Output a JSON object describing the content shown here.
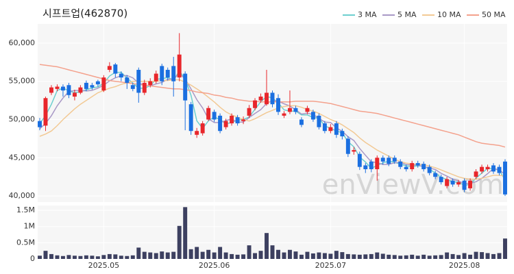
{
  "chart_data": {
    "type": "candlestick",
    "title": "시프트업(462870)",
    "watermark": "enViewV.com",
    "categories": [
      null,
      null,
      null,
      null,
      null,
      null,
      null,
      null,
      null,
      null,
      null,
      "2025.05",
      null,
      null,
      null,
      null,
      null,
      null,
      null,
      null,
      null,
      null,
      null,
      null,
      null,
      null,
      null,
      null,
      null,
      null,
      "2025.06",
      null,
      null,
      null,
      null,
      null,
      null,
      null,
      null,
      null,
      null,
      null,
      null,
      null,
      null,
      null,
      null,
      null,
      null,
      null,
      "2025.07",
      null,
      null,
      null,
      null,
      null,
      null,
      null,
      null,
      null,
      null,
      null,
      null,
      null,
      null,
      null,
      null,
      null,
      null,
      null,
      null,
      null,
      null,
      "2025.08",
      null,
      null,
      null,
      null,
      null,
      null,
      null
    ],
    "open": [
      49800,
      49200,
      53500,
      54000,
      54300,
      54500,
      53000,
      53500,
      54800,
      54500,
      55000,
      53800,
      56500,
      57200,
      56000,
      55500,
      54500,
      56500,
      53500,
      54500,
      55000,
      57000,
      56500,
      57000,
      55500,
      56000,
      52000,
      48000,
      48200,
      50000,
      51000,
      50500,
      49000,
      49500,
      50300,
      49800,
      50500,
      51500,
      52500,
      52000,
      53500,
      52800,
      50500,
      51000,
      51500,
      50000,
      51000,
      51000,
      50500,
      49500,
      48500,
      49500,
      48500,
      47500,
      45800,
      45500,
      44000,
      44500,
      43500,
      45000,
      45000,
      45000,
      44500,
      43800,
      43500,
      44300,
      44200,
      43800,
      43000,
      42500,
      41300,
      42000,
      41500,
      42000,
      41000,
      42500,
      43200,
      43500,
      44000,
      43800,
      44500
    ],
    "high": [
      50200,
      53000,
      54500,
      54600,
      54600,
      54800,
      53900,
      54500,
      55100,
      54800,
      55200,
      55800,
      57500,
      57400,
      56300,
      55800,
      54800,
      56800,
      55200,
      55400,
      56400,
      57300,
      56800,
      58200,
      61300,
      56300,
      52300,
      48900,
      49800,
      51800,
      51300,
      50800,
      50100,
      50800,
      50600,
      50400,
      51900,
      52800,
      53400,
      56500,
      53800,
      53300,
      51100,
      53800,
      51800,
      50300,
      51800,
      51300,
      50800,
      49800,
      49400,
      49800,
      48800,
      47800,
      46400,
      45800,
      44300,
      44800,
      45300,
      45300,
      45300,
      45300,
      44800,
      44100,
      44600,
      44600,
      44500,
      44100,
      43300,
      42800,
      42500,
      42300,
      42100,
      42300,
      42300,
      43500,
      44100,
      44100,
      44300,
      44100,
      44800
    ],
    "low": [
      48600,
      48500,
      53200,
      53700,
      53000,
      52800,
      52500,
      53300,
      53700,
      53900,
      54300,
      53600,
      56200,
      55500,
      55000,
      54000,
      53700,
      52200,
      53200,
      54200,
      54700,
      54500,
      55100,
      53000,
      55000,
      48600,
      48000,
      47600,
      47900,
      49800,
      49700,
      48200,
      48700,
      49200,
      49200,
      49400,
      50200,
      51200,
      52200,
      51800,
      51600,
      50600,
      50200,
      50700,
      50700,
      49000,
      50700,
      49700,
      48700,
      48200,
      48200,
      47600,
      47400,
      45100,
      45400,
      43400,
      43000,
      43100,
      42000,
      44100,
      43900,
      44200,
      43500,
      43200,
      43200,
      43700,
      43200,
      42700,
      42200,
      41500,
      41000,
      41200,
      41200,
      40500,
      40700,
      42200,
      42900,
      43200,
      42900,
      42700,
      40000
    ],
    "close": [
      49000,
      52800,
      54200,
      54300,
      53800,
      53200,
      53500,
      54200,
      54000,
      54200,
      54600,
      55500,
      57000,
      56000,
      55500,
      54800,
      54000,
      53500,
      54800,
      55000,
      56000,
      55000,
      55500,
      55000,
      58500,
      52500,
      48500,
      48500,
      49500,
      51500,
      50000,
      48500,
      49800,
      50500,
      49500,
      50000,
      51500,
      52500,
      53000,
      53500,
      52000,
      51000,
      50800,
      51500,
      51000,
      49300,
      51500,
      50000,
      49000,
      48500,
      49000,
      48000,
      47800,
      45500,
      46000,
      43800,
      43500,
      43500,
      45000,
      44500,
      44200,
      44500,
      43800,
      43500,
      44300,
      44000,
      43500,
      43000,
      42500,
      41800,
      42200,
      41500,
      41800,
      40800,
      42000,
      43200,
      43800,
      43800,
      43200,
      43000,
      40200
    ],
    "up_color": "#e8262b",
    "down_color": "#1b6fe0",
    "ylim": [
      39200,
      62500
    ],
    "yticks": [
      {
        "value": 40000,
        "label": "40,000"
      },
      {
        "value": 45000,
        "label": "45,000"
      },
      {
        "value": 50000,
        "label": "50,000"
      },
      {
        "value": 55000,
        "label": "55,000"
      },
      {
        "value": 60000,
        "label": "60,000"
      }
    ],
    "grid": true,
    "legend": "top-right",
    "series": [
      {
        "name": "3 MA",
        "color": "#6ccfcf",
        "values": [
          49500,
          50500,
          52000,
          53800,
          54100,
          53770,
          53500,
          53630,
          53900,
          54130,
          54270,
          54770,
          55700,
          56170,
          56170,
          55430,
          54770,
          54100,
          54100,
          54430,
          55270,
          55330,
          55500,
          55170,
          56330,
          55330,
          53170,
          49830,
          48830,
          49830,
          50330,
          50000,
          49430,
          49600,
          49930,
          50000,
          50330,
          51330,
          52330,
          53000,
          52830,
          52170,
          51270,
          51100,
          51100,
          50600,
          50600,
          50270,
          50170,
          49170,
          48830,
          48500,
          48270,
          47100,
          46430,
          45100,
          44430,
          43600,
          44000,
          44330,
          44570,
          44400,
          44170,
          43930,
          43870,
          43930,
          43930,
          43500,
          43000,
          42430,
          42170,
          41830,
          41830,
          41370,
          41530,
          42330,
          43000,
          43600,
          43600,
          43330,
          42130
        ]
      },
      {
        "name": "5 MA",
        "color": "#a898c6",
        "values": [
          48800,
          49500,
          50500,
          51800,
          52820,
          53660,
          53800,
          53800,
          53740,
          53820,
          54100,
          54500,
          55060,
          55460,
          55720,
          55760,
          55460,
          54760,
          54520,
          54420,
          54660,
          54860,
          55260,
          55300,
          56000,
          55300,
          54000,
          52600,
          51500,
          50100,
          49600,
          49600,
          49860,
          50060,
          49660,
          49660,
          50260,
          50800,
          51300,
          52100,
          52500,
          52400,
          52060,
          51760,
          51260,
          50720,
          50820,
          50660,
          50160,
          49660,
          49600,
          48900,
          48460,
          47760,
          47260,
          46220,
          45320,
          44460,
          44360,
          44100,
          44140,
          44340,
          44400,
          44100,
          44060,
          44020,
          43820,
          43660,
          43460,
          42960,
          42600,
          42200,
          41960,
          41620,
          41660,
          41860,
          42320,
          42920,
          43600,
          43400,
          42800
        ]
      },
      {
        "name": "10 MA",
        "color": "#f2c994",
        "values": [
          47800,
          48100,
          48500,
          49200,
          50000,
          50700,
          51400,
          52000,
          52500,
          53000,
          53500,
          53800,
          54100,
          54300,
          54600,
          54800,
          55000,
          55000,
          55000,
          55000,
          55000,
          55100,
          55100,
          55200,
          55200,
          54900,
          54500,
          54000,
          53500,
          52900,
          52300,
          51600,
          51000,
          50600,
          50300,
          50000,
          49800,
          50100,
          50500,
          50900,
          51200,
          51500,
          51700,
          51800,
          51800,
          51600,
          51300,
          51100,
          50800,
          50400,
          50000,
          49700,
          49300,
          48800,
          48300,
          47600,
          47000,
          46500,
          46000,
          45600,
          45200,
          44800,
          44500,
          44300,
          44200,
          44100,
          44100,
          43900,
          43700,
          43400,
          43100,
          42800,
          42500,
          42300,
          42200,
          42200,
          42300,
          42500,
          42700,
          42700,
          42600
        ]
      },
      {
        "name": "50 MA",
        "color": "#f4a18c",
        "values": [
          57200,
          57100,
          57000,
          56900,
          56700,
          56500,
          56300,
          56100,
          55900,
          55700,
          55500,
          55300,
          55100,
          55000,
          54900,
          54800,
          54700,
          54600,
          54500,
          54400,
          54300,
          54200,
          54100,
          54000,
          54000,
          53900,
          53800,
          53600,
          53500,
          53400,
          53200,
          53100,
          52900,
          52800,
          52600,
          52500,
          52400,
          52400,
          52300,
          52300,
          52300,
          52300,
          52300,
          52300,
          52400,
          52400,
          52400,
          52400,
          52300,
          52200,
          52100,
          51900,
          51700,
          51500,
          51300,
          51100,
          51000,
          50900,
          50800,
          50600,
          50400,
          50200,
          50000,
          49800,
          49600,
          49400,
          49200,
          49000,
          48800,
          48600,
          48400,
          48200,
          48000,
          47700,
          47400,
          47100,
          46900,
          46800,
          46700,
          46600,
          46400
        ]
      }
    ],
    "volume": {
      "color": "#3d4060",
      "ylim": [
        0,
        1650000
      ],
      "yticks": [
        0,
        {
          "value": 500000,
          "label": "0.5M"
        },
        {
          "value": 1000000,
          "label": "1M"
        },
        {
          "value": 1500000,
          "label": "1.5M"
        }
      ],
      "values": [
        100000,
        250000,
        150000,
        110000,
        90000,
        120000,
        100000,
        90000,
        110000,
        100000,
        80000,
        120000,
        150000,
        140000,
        100000,
        90000,
        110000,
        350000,
        220000,
        200000,
        180000,
        230000,
        200000,
        220000,
        1020000,
        1600000,
        300000,
        370000,
        220000,
        280000,
        200000,
        370000,
        200000,
        150000,
        130000,
        140000,
        420000,
        180000,
        250000,
        800000,
        420000,
        280000,
        200000,
        280000,
        230000,
        130000,
        220000,
        170000,
        200000,
        180000,
        160000,
        250000,
        210000,
        150000,
        140000,
        130000,
        140000,
        150000,
        200000,
        160000,
        130000,
        120000,
        100000,
        110000,
        130000,
        100000,
        130000,
        100000,
        110000,
        120000,
        200000,
        150000,
        120000,
        180000,
        130000,
        220000,
        210000,
        180000,
        150000,
        180000,
        630000
      ]
    }
  }
}
